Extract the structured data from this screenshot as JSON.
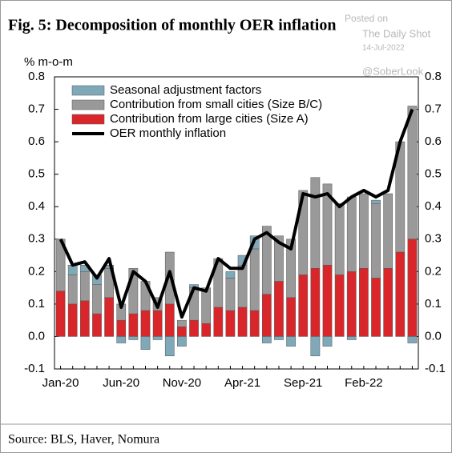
{
  "chart_data": {
    "type": "bar",
    "title": "Fig. 5:  Decomposition of monthly OER inflation",
    "y_label": "% m-o-m",
    "source": "Source: BLS, Haver, Nomura",
    "watermark": [
      "Posted on",
      "The Daily Shot",
      "14-Jul-2022",
      "@SoberLook"
    ],
    "stacked": true,
    "categories": [
      "Jan-20",
      null,
      null,
      null,
      null,
      "Jun-20",
      null,
      null,
      null,
      null,
      "Nov-20",
      null,
      null,
      null,
      null,
      "Apr-21",
      null,
      null,
      null,
      null,
      "Sep-21",
      null,
      null,
      null,
      null,
      "Feb-22",
      null,
      null,
      null,
      null
    ],
    "series": [
      {
        "name": "Seasonal adjustment factors",
        "color": "#7fa9b8",
        "values": [
          0,
          0.03,
          0.02,
          0.03,
          0.01,
          -0.02,
          -0.01,
          -0.04,
          -0.01,
          -0.06,
          -0.03,
          0.01,
          0,
          0,
          0.02,
          0.03,
          0.04,
          -0.02,
          -0.01,
          -0.03,
          0,
          -0.06,
          -0.03,
          0,
          -0.01,
          0,
          0.01,
          0,
          0,
          -0.02
        ]
      },
      {
        "name": "Contribution from small cities (Size B/C)",
        "color": "#999999",
        "values": [
          0.16,
          0.09,
          0.09,
          0.09,
          0.09,
          0.05,
          0.14,
          0.09,
          0.04,
          0.16,
          0.02,
          0.1,
          0.11,
          0.15,
          0.1,
          0.13,
          0.19,
          0.21,
          0.14,
          0.18,
          0.26,
          0.28,
          0.25,
          0.22,
          0.23,
          0.23,
          0.23,
          0.23,
          0.34,
          0.41
        ]
      },
      {
        "name": "Contribution from large cities (Size A)",
        "color": "#d9262b",
        "values": [
          0.14,
          0.1,
          0.11,
          0.07,
          0.12,
          0.05,
          0.07,
          0.08,
          0.08,
          0.1,
          0.03,
          0.05,
          0.04,
          0.09,
          0.08,
          0.09,
          0.08,
          0.13,
          0.17,
          0.12,
          0.19,
          0.21,
          0.22,
          0.19,
          0.2,
          0.21,
          0.18,
          0.21,
          0.26,
          0.3
        ]
      },
      {
        "name": "OER monthly inflation",
        "type": "line",
        "color": "#000000",
        "values": [
          0.3,
          0.22,
          0.23,
          0.18,
          0.24,
          0.09,
          0.2,
          0.17,
          0.09,
          0.2,
          0.06,
          0.15,
          0.14,
          0.24,
          0.21,
          0.21,
          0.3,
          0.32,
          0.29,
          0.27,
          0.44,
          0.43,
          0.44,
          0.4,
          0.43,
          0.45,
          0.43,
          0.45,
          0.6,
          0.7
        ]
      }
    ],
    "stack_order": [
      2,
      1,
      0
    ],
    "ylim": [
      -0.1,
      0.8
    ],
    "yticks": [
      -0.1,
      {
        "value": 0,
        "label": "0.0"
      },
      0.1,
      0.2,
      0.3,
      0.4,
      0.5,
      0.6,
      0.7,
      0.8
    ],
    "y2lim": [
      -0.1,
      0.8
    ],
    "y2ticks": [
      -0.1,
      {
        "value": 0,
        "label": "0.0"
      },
      0.1,
      0.2,
      0.3,
      0.4,
      0.5,
      0.6,
      0.7,
      0.8
    ],
    "legend": "upper left"
  }
}
